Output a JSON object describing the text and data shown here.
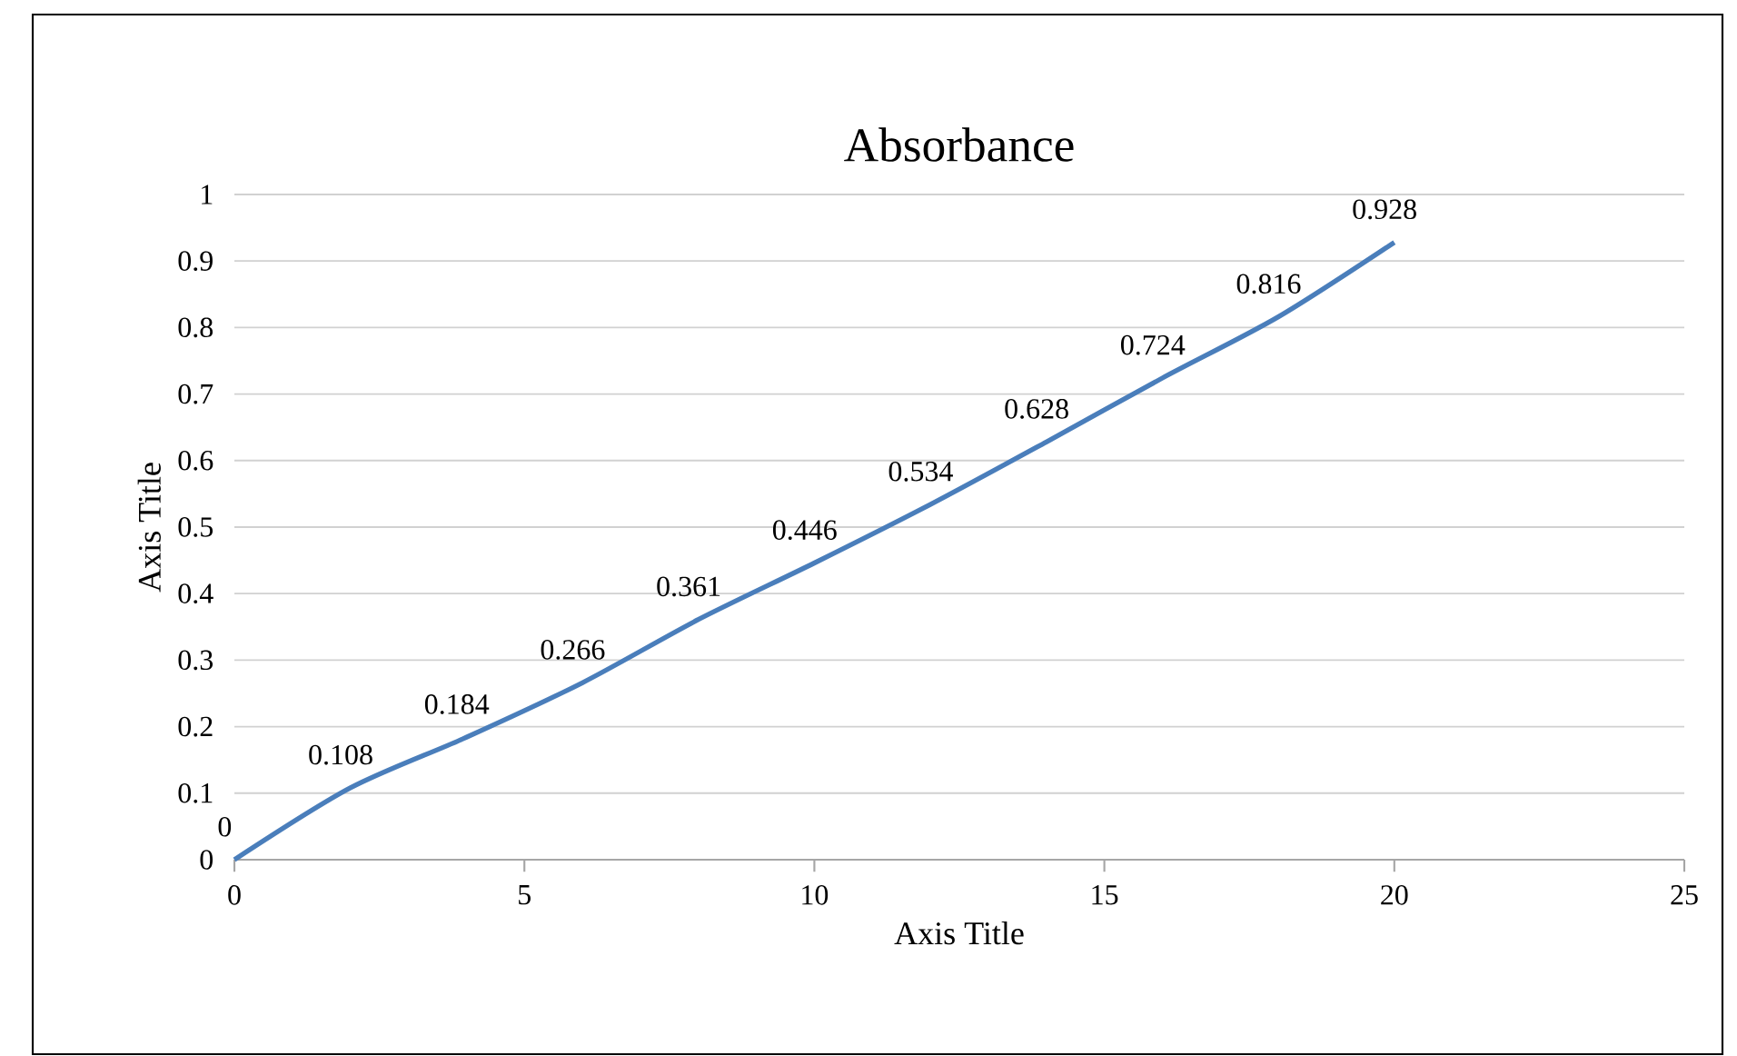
{
  "chart_data": {
    "type": "line",
    "title": "Absorbance",
    "xlabel": "Axis Title",
    "ylabel": "Axis Title",
    "x": [
      0,
      2,
      4,
      6,
      8,
      10,
      12,
      14,
      16,
      18,
      20
    ],
    "series": [
      {
        "color": "#4a7ebb",
        "values": [
          0,
          0.108,
          0.184,
          0.266,
          0.361,
          0.446,
          0.534,
          0.628,
          0.724,
          0.816,
          0.928
        ]
      }
    ],
    "xlim": [
      0,
      25
    ],
    "ylim": [
      0,
      1
    ],
    "xticks": [
      0,
      5,
      10,
      15,
      20,
      25
    ],
    "yticks": [
      0,
      0.1,
      0.2,
      0.3,
      0.4,
      0.5,
      0.6,
      0.7,
      0.8,
      0.9,
      1
    ],
    "grid": "y",
    "data_labels": true
  }
}
